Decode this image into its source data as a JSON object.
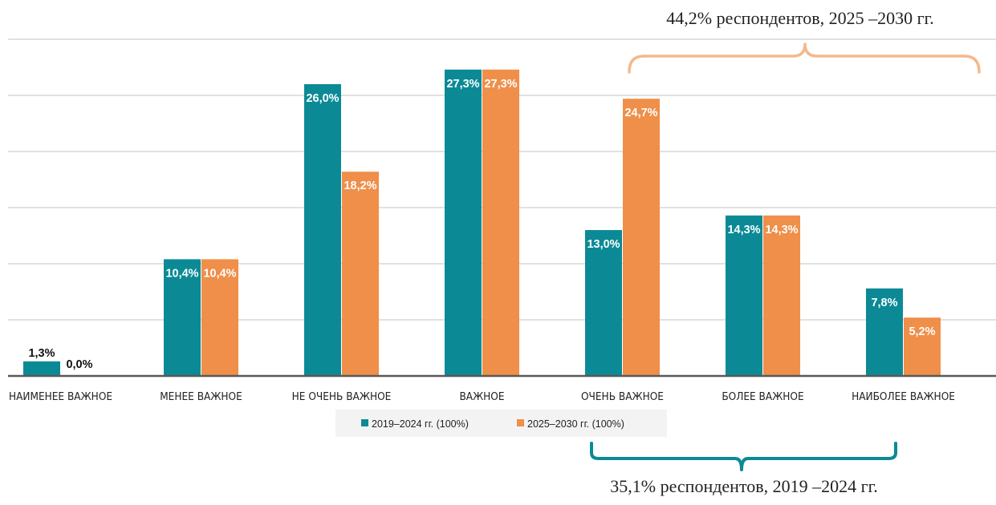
{
  "chart_data": {
    "type": "bar",
    "categories": [
      "НАИМЕНЕЕ ВАЖНОЕ",
      "МЕНЕЕ ВАЖНОЕ",
      "НЕ ОЧЕНЬ ВАЖНОЕ",
      "ВАЖНОЕ",
      "ОЧЕНЬ ВАЖНОЕ",
      "БОЛЕЕ ВАЖНОЕ",
      "НАИБОЛЕЕ ВАЖНОЕ"
    ],
    "series": [
      {
        "name": "2019–2024 гг. (100%)",
        "color": "#0b8a96",
        "values": [
          1.3,
          10.4,
          26.0,
          27.3,
          13.0,
          14.3,
          7.8
        ],
        "labels": [
          "1,3%",
          "10,4%",
          "26,0%",
          "27,3%",
          "13,0%",
          "14,3%",
          "7,8%"
        ]
      },
      {
        "name": "2025–2030 гг. (100%)",
        "color": "#ef8f4a",
        "values": [
          0.0,
          10.4,
          18.2,
          27.3,
          24.7,
          14.3,
          5.2
        ],
        "labels": [
          "0,0%",
          "10,4%",
          "18,2%",
          "27,3%",
          "24,7%",
          "14,3%",
          "5,2%"
        ]
      }
    ],
    "ylim": [
      0,
      35
    ],
    "grid": true,
    "legend": "bottom",
    "annotations": [
      {
        "text": "44,2% респондентов, 2025 –2030 гг.",
        "bracket_color": "#f5b88b",
        "spans": [
          "ОЧЕНЬ ВАЖНОЕ",
          "НАИБОЛЕЕ ВАЖНОЕ"
        ],
        "position": "top"
      },
      {
        "text": "35,1% респондентов, 2019 –2024 гг.",
        "bracket_color": "#0b8a96",
        "spans": [
          "ОЧЕНЬ ВАЖНОЕ",
          "НАИБОЛЕЕ ВАЖНОЕ"
        ],
        "position": "bottom"
      }
    ]
  }
}
